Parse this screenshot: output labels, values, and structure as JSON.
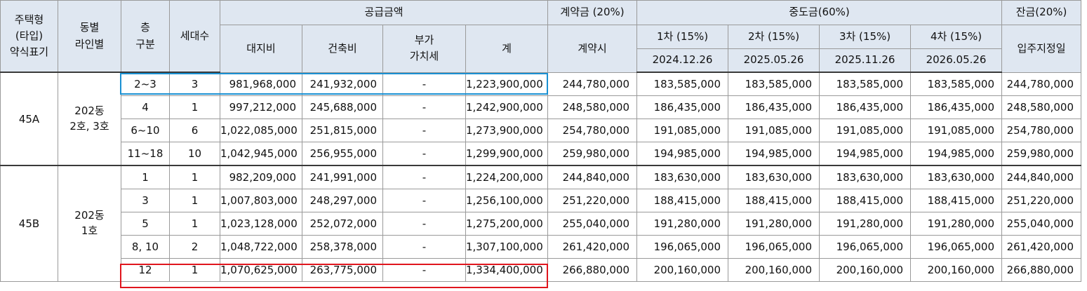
{
  "headers": {
    "type": "주택형\n(타입)\n약식표기",
    "dong_line": "동별\n라인별",
    "floor": "층\n구분",
    "units": "세대수",
    "supply_price": "공급금액",
    "land": "대지비",
    "building": "건축비",
    "vat": "부가\n가치세",
    "total": "계",
    "deposit": "계약금 (20%)",
    "deposit_when": "계약시",
    "middle": "중도금(60%)",
    "mid1": "1차 (15%)",
    "mid1_date": "2024.12.26",
    "mid2": "2차 (15%)",
    "mid2_date": "2025.05.26",
    "mid3": "3차 (15%)",
    "mid3_date": "2025.11.26",
    "mid4": "4차 (15%)",
    "mid4_date": "2026.05.26",
    "balance": "잔금(20%)",
    "balance_when": "입주지정일"
  },
  "groups": [
    {
      "type": "45A",
      "dong": "202동\n2호, 3호",
      "rows": [
        {
          "floor": "2~3",
          "units": "3",
          "land": "981,968,000",
          "building": "241,932,000",
          "vat": "-",
          "total": "1,223,900,000",
          "deposit": "244,780,000",
          "m1": "183,585,000",
          "m2": "183,585,000",
          "m3": "183,585,000",
          "m4": "183,585,000",
          "balance": "244,780,000"
        },
        {
          "floor": "4",
          "units": "1",
          "land": "997,212,000",
          "building": "245,688,000",
          "vat": "-",
          "total": "1,242,900,000",
          "deposit": "248,580,000",
          "m1": "186,435,000",
          "m2": "186,435,000",
          "m3": "186,435,000",
          "m4": "186,435,000",
          "balance": "248,580,000"
        },
        {
          "floor": "6~10",
          "units": "6",
          "land": "1,022,085,000",
          "building": "251,815,000",
          "vat": "-",
          "total": "1,273,900,000",
          "deposit": "254,780,000",
          "m1": "191,085,000",
          "m2": "191,085,000",
          "m3": "191,085,000",
          "m4": "191,085,000",
          "balance": "254,780,000"
        },
        {
          "floor": "11~18",
          "units": "10",
          "land": "1,042,945,000",
          "building": "256,955,000",
          "vat": "-",
          "total": "1,299,900,000",
          "deposit": "259,980,000",
          "m1": "194,985,000",
          "m2": "194,985,000",
          "m3": "194,985,000",
          "m4": "194,985,000",
          "balance": "259,980,000"
        }
      ]
    },
    {
      "type": "45B",
      "dong": "202동\n1호",
      "rows": [
        {
          "floor": "1",
          "units": "1",
          "land": "982,209,000",
          "building": "241,991,000",
          "vat": "-",
          "total": "1,224,200,000",
          "deposit": "244,840,000",
          "m1": "183,630,000",
          "m2": "183,630,000",
          "m3": "183,630,000",
          "m4": "183,630,000",
          "balance": "244,840,000"
        },
        {
          "floor": "3",
          "units": "1",
          "land": "1,007,803,000",
          "building": "248,297,000",
          "vat": "-",
          "total": "1,256,100,000",
          "deposit": "251,220,000",
          "m1": "188,415,000",
          "m2": "188,415,000",
          "m3": "188,415,000",
          "m4": "188,415,000",
          "balance": "251,220,000"
        },
        {
          "floor": "5",
          "units": "1",
          "land": "1,023,128,000",
          "building": "252,072,000",
          "vat": "-",
          "total": "1,275,200,000",
          "deposit": "255,040,000",
          "m1": "191,280,000",
          "m2": "191,280,000",
          "m3": "191,280,000",
          "m4": "191,280,000",
          "balance": "255,040,000"
        },
        {
          "floor": "8, 10",
          "units": "2",
          "land": "1,048,722,000",
          "building": "258,378,000",
          "vat": "-",
          "total": "1,307,100,000",
          "deposit": "261,420,000",
          "m1": "196,065,000",
          "m2": "196,065,000",
          "m3": "196,065,000",
          "m4": "196,065,000",
          "balance": "261,420,000"
        },
        {
          "floor": "12",
          "units": "1",
          "land": "1,070,625,000",
          "building": "263,775,000",
          "vat": "-",
          "total": "1,334,400,000",
          "deposit": "266,880,000",
          "m1": "200,160,000",
          "m2": "200,160,000",
          "m3": "200,160,000",
          "m4": "200,160,000",
          "balance": "266,880,000"
        }
      ]
    }
  ],
  "highlights": {
    "blue": "#1a90d2",
    "red": "#e0151d"
  }
}
